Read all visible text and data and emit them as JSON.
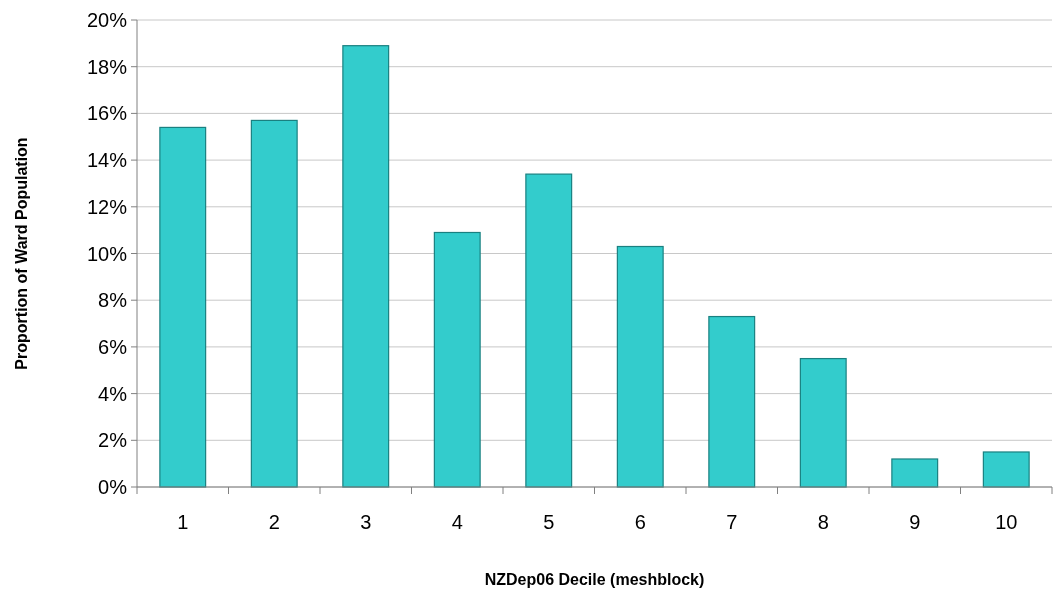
{
  "chart_data": {
    "type": "bar",
    "xlabel": "NZDep06 Decile (meshblock)",
    "ylabel": "Proportion of Ward Population",
    "categories": [
      "1",
      "2",
      "3",
      "4",
      "5",
      "6",
      "7",
      "8",
      "9",
      "10"
    ],
    "values": [
      15.4,
      15.7,
      18.9,
      10.9,
      13.4,
      10.3,
      7.3,
      5.5,
      1.2,
      1.5
    ],
    "color": "#33cccc",
    "ylim": [
      0,
      20
    ],
    "yticks": [
      {
        "value": 0,
        "label": "0%"
      },
      {
        "value": 2,
        "label": "2%"
      },
      {
        "value": 4,
        "label": "4%"
      },
      {
        "value": 6,
        "label": "6%"
      },
      {
        "value": 8,
        "label": "8%"
      },
      {
        "value": 10,
        "label": "10%"
      },
      {
        "value": 12,
        "label": "12%"
      },
      {
        "value": 14,
        "label": "14%"
      },
      {
        "value": 16,
        "label": "16%"
      },
      {
        "value": 18,
        "label": "18%"
      },
      {
        "value": 20,
        "label": "20%"
      }
    ],
    "grid": "y"
  }
}
